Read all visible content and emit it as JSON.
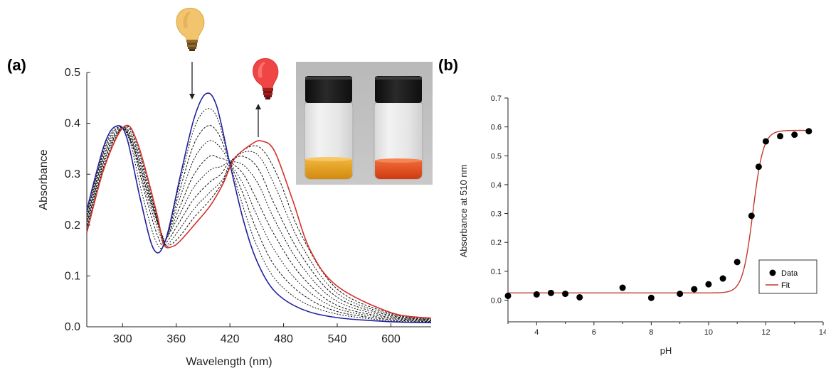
{
  "panels": {
    "a_label": "(a)",
    "b_label": "(b)"
  },
  "colors": {
    "initial_spectrum": "#1f1f9e",
    "final_spectrum": "#d4302b",
    "intermediate_spectra": "#111111",
    "fit_line": "#c0392b",
    "data_points": "#000000",
    "bulb_yellow": "#f2c46d",
    "bulb_red": "#f04545",
    "vial_left_solution": "#e8a31d",
    "vial_right_solution": "#e0461c"
  },
  "icons": {
    "yellow_bulb": "lightbulb-icon",
    "red_bulb": "lightbulb-icon",
    "arrow_down": "arrow-down-icon",
    "arrow_up": "arrow-up-icon",
    "photo": "vials-photo"
  },
  "chart_data": [
    {
      "id": "a",
      "type": "line",
      "xlabel": "Wavelength (nm)",
      "ylabel": "Absorbance",
      "xlim": [
        260,
        645
      ],
      "ylim": [
        0.0,
        0.5
      ],
      "x_ticks": [
        300,
        360,
        420,
        480,
        540,
        600
      ],
      "x_tick_labels": [
        "300",
        "360",
        "420",
        "480",
        "540",
        "600"
      ],
      "y_ticks": [
        0.0,
        0.1,
        0.2,
        0.3,
        0.4,
        0.5
      ],
      "y_tick_labels": [
        "0.0",
        "0.1",
        "0.2",
        "0.3",
        "0.4",
        "0.5"
      ],
      "grid": false,
      "legend": "none",
      "isosbestic_points_nm": [
        348,
        420
      ],
      "series": [
        {
          "line": "solid",
          "color": "#1f1f9e",
          "points": [
            [
              260,
              0.23
            ],
            [
              280,
              0.36
            ],
            [
              294,
              0.395
            ],
            [
              305,
              0.37
            ],
            [
              320,
              0.25
            ],
            [
              335,
              0.152
            ],
            [
              348,
              0.17
            ],
            [
              365,
              0.3
            ],
            [
              380,
              0.41
            ],
            [
              393,
              0.458
            ],
            [
              405,
              0.435
            ],
            [
              420,
              0.32
            ],
            [
              435,
              0.21
            ],
            [
              450,
              0.13
            ],
            [
              470,
              0.07
            ],
            [
              500,
              0.035
            ],
            [
              540,
              0.018
            ],
            [
              600,
              0.01
            ],
            [
              645,
              0.008
            ]
          ]
        },
        {
          "line": "dashed",
          "color": "#111111",
          "points": [
            [
              260,
              0.225
            ],
            [
              280,
              0.355
            ],
            [
              296,
              0.393
            ],
            [
              308,
              0.365
            ],
            [
              322,
              0.26
            ],
            [
              338,
              0.165
            ],
            [
              348,
              0.17
            ],
            [
              365,
              0.29
            ],
            [
              380,
              0.39
            ],
            [
              394,
              0.428
            ],
            [
              406,
              0.41
            ],
            [
              420,
              0.322
            ],
            [
              435,
              0.235
            ],
            [
              450,
              0.16
            ],
            [
              470,
              0.095
            ],
            [
              500,
              0.05
            ],
            [
              540,
              0.025
            ],
            [
              600,
              0.012
            ],
            [
              645,
              0.009
            ]
          ]
        },
        {
          "line": "dashed",
          "color": "#111111",
          "points": [
            [
              260,
              0.22
            ],
            [
              280,
              0.35
            ],
            [
              297,
              0.392
            ],
            [
              310,
              0.36
            ],
            [
              325,
              0.262
            ],
            [
              340,
              0.175
            ],
            [
              348,
              0.17
            ],
            [
              365,
              0.275
            ],
            [
              380,
              0.36
            ],
            [
              395,
              0.395
            ],
            [
              407,
              0.38
            ],
            [
              420,
              0.323
            ],
            [
              435,
              0.26
            ],
            [
              450,
              0.19
            ],
            [
              470,
              0.12
            ],
            [
              500,
              0.065
            ],
            [
              540,
              0.03
            ],
            [
              600,
              0.014
            ],
            [
              645,
              0.01
            ]
          ]
        },
        {
          "line": "dashed",
          "color": "#111111",
          "points": [
            [
              260,
              0.215
            ],
            [
              280,
              0.345
            ],
            [
              298,
              0.391
            ],
            [
              311,
              0.358
            ],
            [
              326,
              0.265
            ],
            [
              342,
              0.18
            ],
            [
              348,
              0.17
            ],
            [
              365,
              0.258
            ],
            [
              380,
              0.33
            ],
            [
              396,
              0.365
            ],
            [
              408,
              0.355
            ],
            [
              420,
              0.323
            ],
            [
              435,
              0.28
            ],
            [
              450,
              0.22
            ],
            [
              470,
              0.15
            ],
            [
              500,
              0.082
            ],
            [
              540,
              0.036
            ],
            [
              600,
              0.016
            ],
            [
              645,
              0.011
            ]
          ]
        },
        {
          "line": "dashed",
          "color": "#111111",
          "points": [
            [
              260,
              0.21
            ],
            [
              280,
              0.34
            ],
            [
              299,
              0.39
            ],
            [
              312,
              0.356
            ],
            [
              328,
              0.262
            ],
            [
              344,
              0.178
            ],
            [
              348,
              0.17
            ],
            [
              365,
              0.24
            ],
            [
              380,
              0.3
            ],
            [
              397,
              0.335
            ],
            [
              408,
              0.332
            ],
            [
              420,
              0.324
            ],
            [
              435,
              0.3
            ],
            [
              450,
              0.25
            ],
            [
              470,
              0.18
            ],
            [
              500,
              0.1
            ],
            [
              540,
              0.042
            ],
            [
              600,
              0.018
            ],
            [
              645,
              0.012
            ]
          ]
        },
        {
          "line": "dashed",
          "color": "#111111",
          "points": [
            [
              260,
              0.205
            ],
            [
              280,
              0.335
            ],
            [
              300,
              0.39
            ],
            [
              313,
              0.355
            ],
            [
              330,
              0.255
            ],
            [
              346,
              0.173
            ],
            [
              348,
              0.17
            ],
            [
              365,
              0.225
            ],
            [
              380,
              0.275
            ],
            [
              398,
              0.308
            ],
            [
              410,
              0.315
            ],
            [
              420,
              0.324
            ],
            [
              435,
              0.318
            ],
            [
              452,
              0.28
            ],
            [
              470,
              0.21
            ],
            [
              500,
              0.12
            ],
            [
              540,
              0.05
            ],
            [
              600,
              0.02
            ],
            [
              645,
              0.013
            ]
          ]
        },
        {
          "line": "dashed",
          "color": "#111111",
          "points": [
            [
              260,
              0.2
            ],
            [
              280,
              0.33
            ],
            [
              300,
              0.391
            ],
            [
              314,
              0.356
            ],
            [
              332,
              0.248
            ],
            [
              346,
              0.17
            ],
            [
              350,
              0.168
            ],
            [
              365,
              0.21
            ],
            [
              380,
              0.252
            ],
            [
              398,
              0.285
            ],
            [
              410,
              0.3
            ],
            [
              420,
              0.325
            ],
            [
              435,
              0.335
            ],
            [
              452,
              0.31
            ],
            [
              470,
              0.24
            ],
            [
              500,
              0.14
            ],
            [
              540,
              0.058
            ],
            [
              600,
              0.022
            ],
            [
              645,
              0.014
            ]
          ]
        },
        {
          "line": "dashed",
          "color": "#111111",
          "points": [
            [
              260,
              0.195
            ],
            [
              280,
              0.325
            ],
            [
              301,
              0.392
            ],
            [
              315,
              0.357
            ],
            [
              334,
              0.24
            ],
            [
              346,
              0.168
            ],
            [
              352,
              0.165
            ],
            [
              365,
              0.195
            ],
            [
              380,
              0.232
            ],
            [
              398,
              0.265
            ],
            [
              412,
              0.29
            ],
            [
              422,
              0.327
            ],
            [
              440,
              0.345
            ],
            [
              455,
              0.33
            ],
            [
              472,
              0.27
            ],
            [
              500,
              0.16
            ],
            [
              540,
              0.066
            ],
            [
              600,
              0.024
            ],
            [
              645,
              0.015
            ]
          ]
        },
        {
          "line": "dashed",
          "color": "#111111",
          "points": [
            [
              260,
              0.19
            ],
            [
              280,
              0.32
            ],
            [
              302,
              0.393
            ],
            [
              316,
              0.358
            ],
            [
              336,
              0.232
            ],
            [
              346,
              0.165
            ],
            [
              354,
              0.162
            ],
            [
              365,
              0.18
            ],
            [
              380,
              0.215
            ],
            [
              398,
              0.25
            ],
            [
              412,
              0.285
            ],
            [
              424,
              0.33
            ],
            [
              444,
              0.355
            ],
            [
              458,
              0.345
            ],
            [
              475,
              0.29
            ],
            [
              500,
              0.18
            ],
            [
              540,
              0.074
            ],
            [
              600,
              0.026
            ],
            [
              645,
              0.016
            ]
          ]
        },
        {
          "line": "solid",
          "color": "#d4302b",
          "points": [
            [
              260,
              0.185
            ],
            [
              280,
              0.315
            ],
            [
              302,
              0.394
            ],
            [
              317,
              0.36
            ],
            [
              338,
              0.225
            ],
            [
              346,
              0.162
            ],
            [
              356,
              0.158
            ],
            [
              365,
              0.17
            ],
            [
              380,
              0.2
            ],
            [
              398,
              0.238
            ],
            [
              412,
              0.28
            ],
            [
              425,
              0.33
            ],
            [
              445,
              0.36
            ],
            [
              456,
              0.365
            ],
            [
              470,
              0.345
            ],
            [
              490,
              0.25
            ],
            [
              510,
              0.15
            ],
            [
              540,
              0.08
            ],
            [
              600,
              0.028
            ],
            [
              645,
              0.017
            ]
          ]
        }
      ]
    },
    {
      "id": "b",
      "type": "scatter",
      "xlabel": "pH",
      "ylabel": "Absorbance at 510 nm",
      "xlim": [
        3,
        14
      ],
      "ylim": [
        -0.075,
        0.7
      ],
      "x_ticks": [
        4,
        6,
        8,
        10,
        12,
        14
      ],
      "x_tick_labels": [
        "4",
        "6",
        "8",
        "10",
        "12",
        "14"
      ],
      "y_ticks": [
        0.0,
        0.1,
        0.2,
        0.3,
        0.4,
        0.5,
        0.6,
        0.7
      ],
      "y_tick_labels": [
        "0.0",
        "0.1",
        "0.2",
        "0.3",
        "0.4",
        "0.5",
        "0.6",
        "0.7"
      ],
      "grid": false,
      "legend": "bottom-right",
      "legend_entries": [
        "Data",
        "Fit"
      ],
      "data": {
        "name": "Data",
        "x": [
          3.0,
          4.0,
          4.5,
          5.0,
          5.5,
          7.0,
          8.0,
          9.0,
          9.5,
          10.0,
          10.5,
          11.0,
          11.5,
          11.75,
          12.0,
          12.5,
          13.0,
          13.5
        ],
        "y": [
          0.015,
          0.02,
          0.025,
          0.022,
          0.01,
          0.043,
          0.008,
          0.022,
          0.038,
          0.055,
          0.075,
          0.132,
          0.292,
          0.462,
          0.55,
          0.568,
          0.573,
          0.585
        ]
      },
      "fit": {
        "name": "Fit",
        "model": "sigmoid",
        "bottom": 0.025,
        "top": 0.588,
        "midpoint_pH": 11.55,
        "slope_factor": 0.18
      }
    }
  ]
}
